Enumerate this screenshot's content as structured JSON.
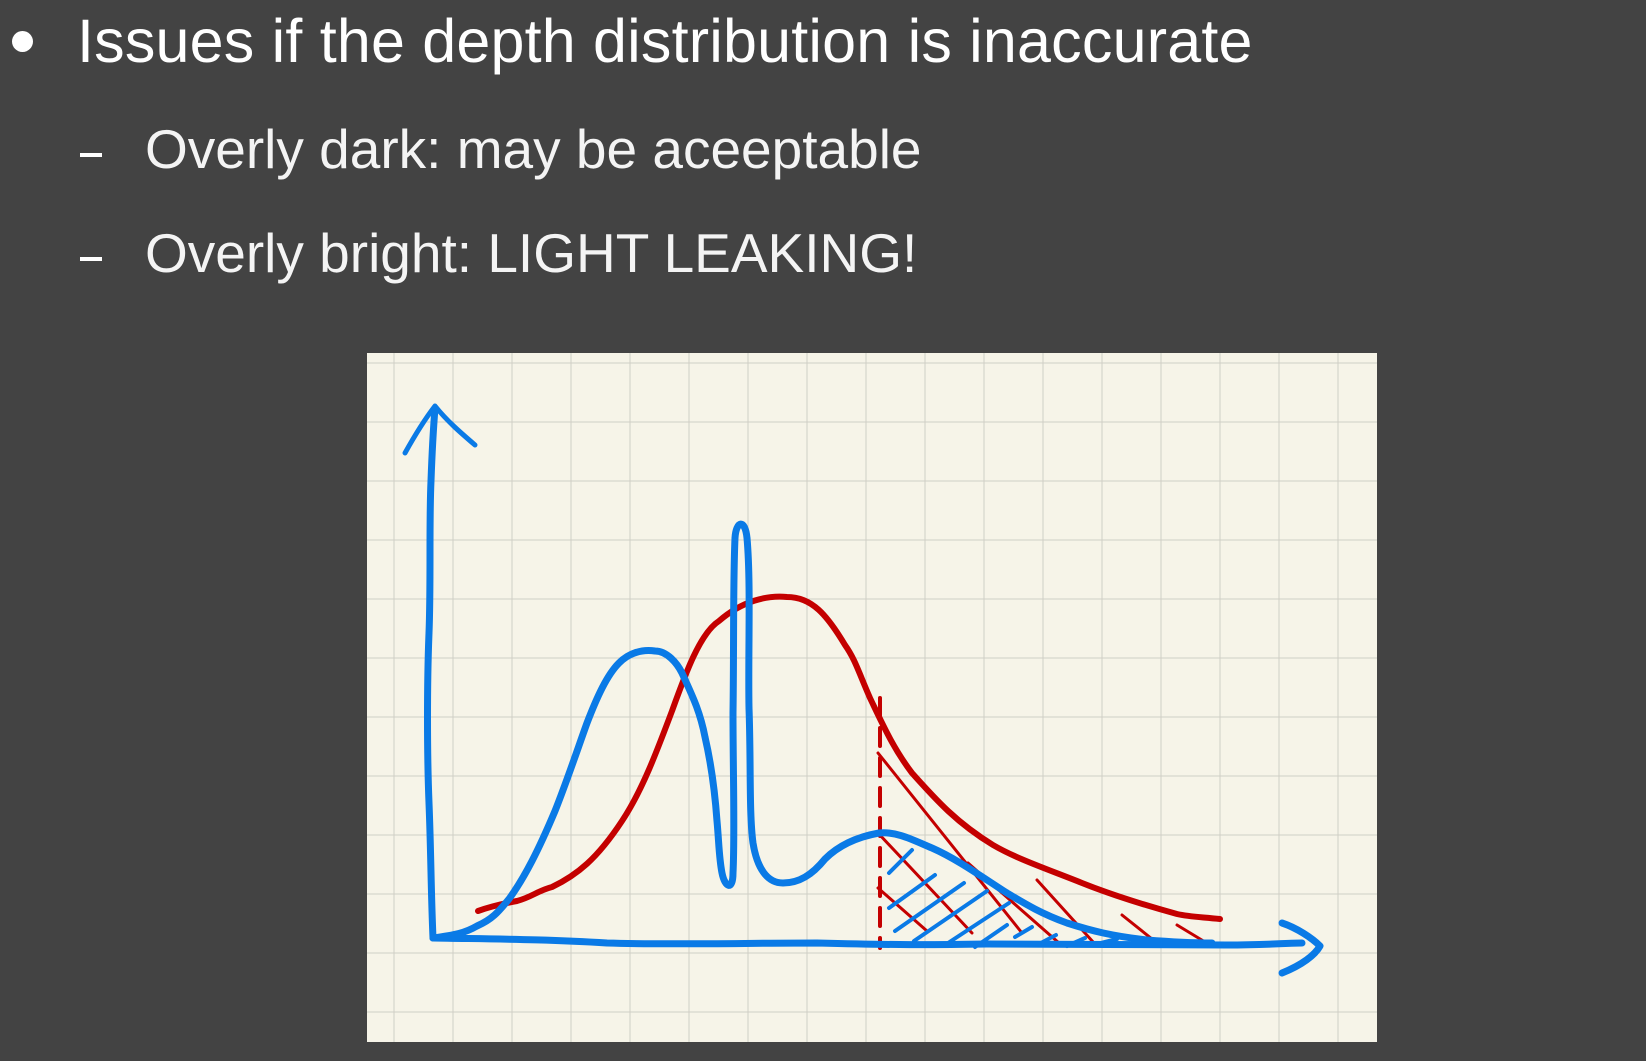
{
  "slide": {
    "heading": "Issues if the depth distribution is inaccurate",
    "subpoints": [
      {
        "marker": "-",
        "text": "Overly dark: may be aceeptable"
      },
      {
        "marker": "-",
        "text": "Overly bright: LIGHT LEAKING!"
      }
    ]
  },
  "diagram": {
    "background_color": "#f6f4e8",
    "grid_color": "#cfcfc6",
    "curves": [
      {
        "id": "true-distribution",
        "color": "#0a7ae6"
      },
      {
        "id": "estimated-distribution",
        "color": "#c40000"
      }
    ],
    "annotations": {
      "threshold_line_style": "dashed",
      "hatching": "cross-hatched tail region"
    }
  }
}
